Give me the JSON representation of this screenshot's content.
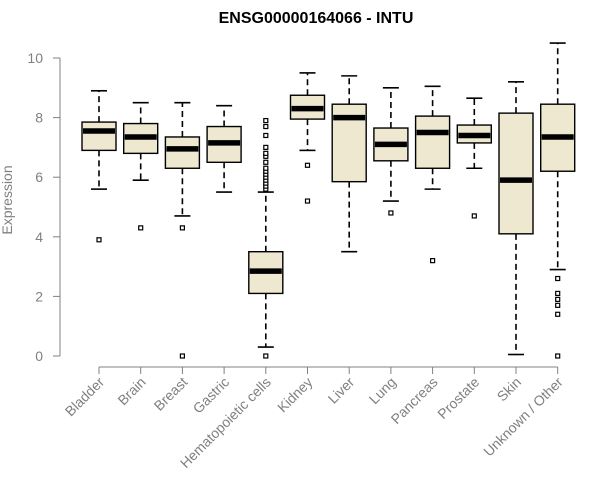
{
  "chart_data": {
    "type": "boxplot",
    "title": "ENSG00000164066 - INTU",
    "xlabel": "",
    "ylabel": "Expression",
    "ylim": [
      0,
      10.5
    ],
    "yticks": [
      0,
      2,
      4,
      6,
      8,
      10
    ],
    "box_fill": "#EEE8D0",
    "categories": [
      "Bladder",
      "Brain",
      "Breast",
      "Gastric",
      "Hematopoietic cells",
      "Kidney",
      "Liver",
      "Lung",
      "Pancreas",
      "Prostate",
      "Skin",
      "Unknown / Other"
    ],
    "boxes": [
      {
        "name": "Bladder",
        "whisker_low": 5.6,
        "q1": 6.9,
        "median": 7.55,
        "q3": 7.85,
        "whisker_high": 8.9,
        "outliers": [
          3.9
        ]
      },
      {
        "name": "Brain",
        "whisker_low": 5.9,
        "q1": 6.8,
        "median": 7.35,
        "q3": 7.8,
        "whisker_high": 8.5,
        "outliers": [
          4.3
        ]
      },
      {
        "name": "Breast",
        "whisker_low": 4.7,
        "q1": 6.3,
        "median": 6.95,
        "q3": 7.35,
        "whisker_high": 8.5,
        "outliers": [
          4.3,
          0.0
        ]
      },
      {
        "name": "Gastric",
        "whisker_low": 5.5,
        "q1": 6.5,
        "median": 7.15,
        "q3": 7.7,
        "whisker_high": 8.4,
        "outliers": []
      },
      {
        "name": "Hematopoietic cells",
        "whisker_low": 0.3,
        "q1": 2.1,
        "median": 2.85,
        "q3": 3.5,
        "whisker_high": 5.5,
        "outliers": [
          0.0,
          5.6,
          5.7,
          5.8,
          5.9,
          6.0,
          6.1,
          6.2,
          6.3,
          6.5,
          6.7,
          6.8,
          7.0,
          7.4,
          7.7,
          7.9
        ]
      },
      {
        "name": "Kidney",
        "whisker_low": 6.9,
        "q1": 7.95,
        "median": 8.3,
        "q3": 8.75,
        "whisker_high": 9.5,
        "outliers": [
          6.4,
          5.2
        ]
      },
      {
        "name": "Liver",
        "whisker_low": 3.5,
        "q1": 5.85,
        "median": 8.0,
        "q3": 8.45,
        "whisker_high": 9.4,
        "outliers": []
      },
      {
        "name": "Lung",
        "whisker_low": 5.2,
        "q1": 6.55,
        "median": 7.1,
        "q3": 7.65,
        "whisker_high": 9.0,
        "outliers": [
          4.8
        ]
      },
      {
        "name": "Pancreas",
        "whisker_low": 5.6,
        "q1": 6.3,
        "median": 7.5,
        "q3": 8.05,
        "whisker_high": 9.05,
        "outliers": [
          3.2
        ]
      },
      {
        "name": "Prostate",
        "whisker_low": 6.3,
        "q1": 7.15,
        "median": 7.4,
        "q3": 7.75,
        "whisker_high": 8.65,
        "outliers": [
          4.7
        ]
      },
      {
        "name": "Skin",
        "whisker_low": 0.05,
        "q1": 4.1,
        "median": 5.9,
        "q3": 8.15,
        "whisker_high": 9.2,
        "outliers": []
      },
      {
        "name": "Unknown / Other",
        "whisker_low": 2.9,
        "q1": 6.2,
        "median": 7.35,
        "q3": 8.45,
        "whisker_high": 10.5,
        "outliers": [
          2.6,
          2.1,
          1.9,
          1.7,
          1.4,
          0.0
        ]
      }
    ]
  }
}
